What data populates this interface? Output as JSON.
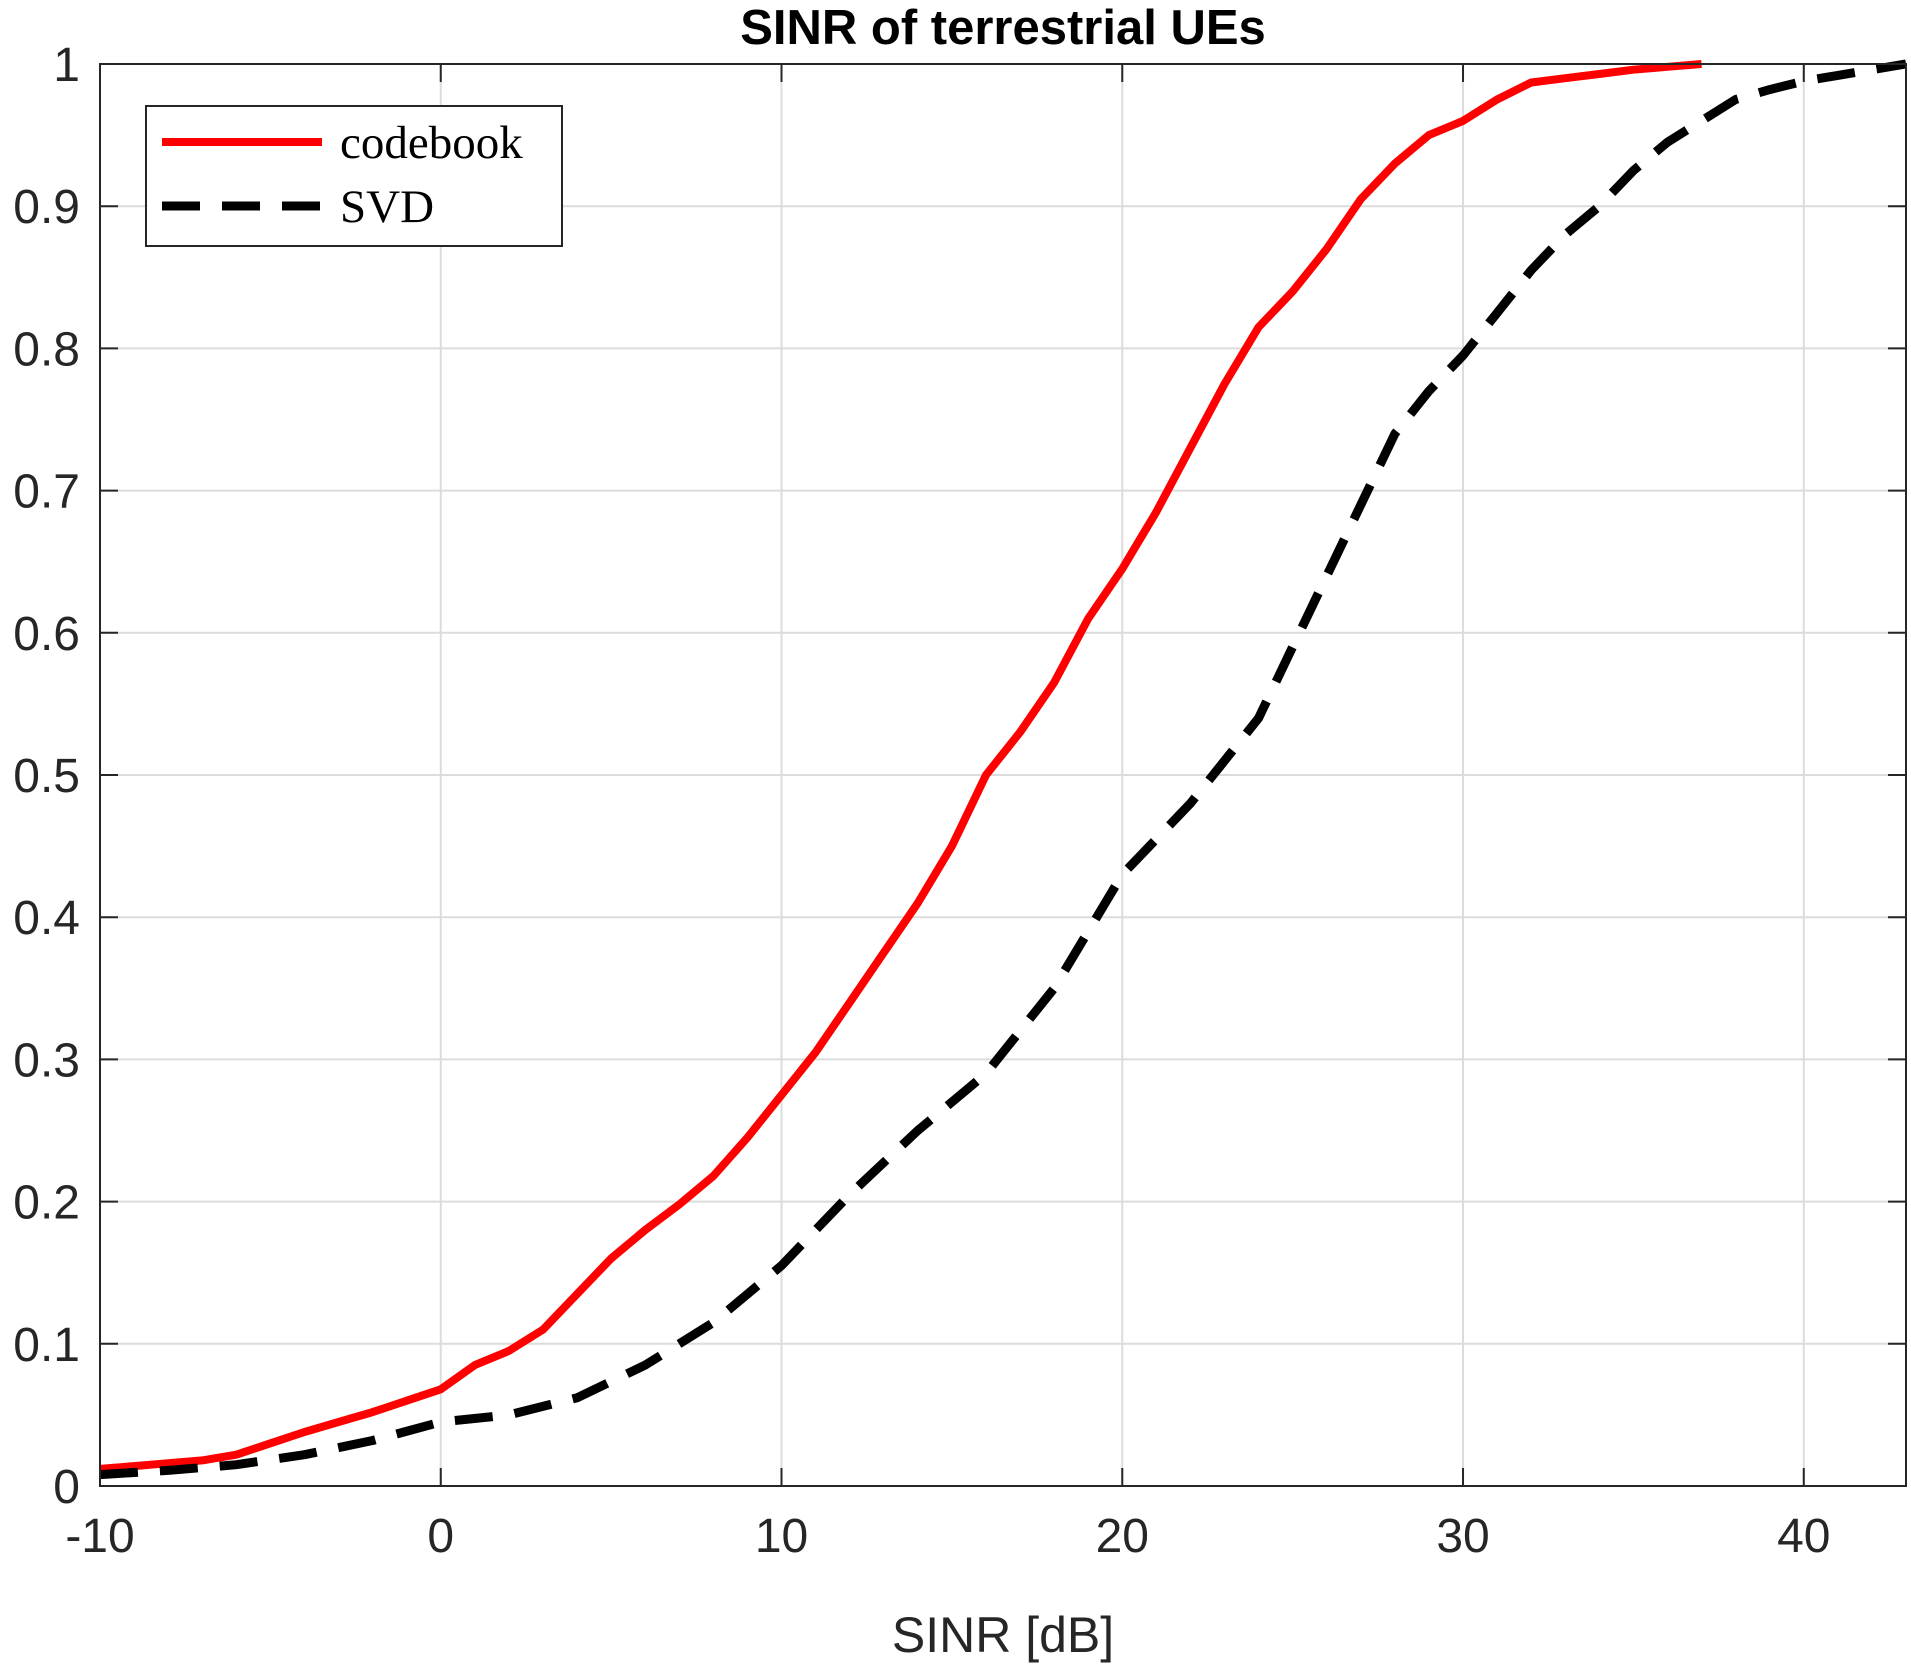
{
  "chart_data": {
    "type": "line",
    "title": "SINR of terrestrial UEs",
    "xlabel": "SINR [dB]",
    "ylabel": "",
    "xlim": [
      -10,
      43
    ],
    "ylim": [
      0,
      1
    ],
    "xticks": [
      -10,
      0,
      10,
      20,
      30,
      40
    ],
    "xtick_labels": [
      "-10",
      "0",
      "10",
      "20",
      "30",
      "40"
    ],
    "yticks": [
      0,
      0.1,
      0.2,
      0.3,
      0.4,
      0.5,
      0.6,
      0.7,
      0.8,
      0.9,
      1
    ],
    "ytick_labels": [
      "0",
      "0.1",
      "0.2",
      "0.3",
      "0.4",
      "0.5",
      "0.6",
      "0.7",
      "0.8",
      "0.9",
      "1"
    ],
    "grid": true,
    "legend_position": "top-left",
    "series": [
      {
        "name": "codebook",
        "color": "#ff0000",
        "style": "solid",
        "x": [
          -10,
          -9,
          -8,
          -7,
          -6,
          -5,
          -4,
          -3,
          -2,
          -1,
          0,
          1,
          2,
          3,
          4,
          5,
          6,
          7,
          8,
          9,
          10,
          11,
          12,
          13,
          14,
          15,
          16,
          17,
          18,
          19,
          20,
          21,
          22,
          23,
          24,
          25,
          26,
          27,
          28,
          29,
          30,
          31,
          32,
          33,
          34,
          35,
          36,
          37
        ],
        "y": [
          0.012,
          0.014,
          0.016,
          0.018,
          0.022,
          0.03,
          0.038,
          0.045,
          0.052,
          0.06,
          0.068,
          0.085,
          0.095,
          0.11,
          0.135,
          0.16,
          0.18,
          0.198,
          0.218,
          0.245,
          0.275,
          0.305,
          0.34,
          0.375,
          0.41,
          0.45,
          0.5,
          0.53,
          0.565,
          0.61,
          0.645,
          0.685,
          0.73,
          0.775,
          0.815,
          0.84,
          0.87,
          0.905,
          0.93,
          0.95,
          0.96,
          0.975,
          0.987,
          0.99,
          0.993,
          0.996,
          0.998,
          1.0
        ]
      },
      {
        "name": "SVD",
        "color": "#000000",
        "style": "dashed",
        "x": [
          -10,
          -8,
          -6,
          -4,
          -2,
          0,
          2,
          4,
          6,
          8,
          10,
          12,
          14,
          16,
          18,
          20,
          22,
          24,
          25,
          26,
          27,
          28,
          29,
          30,
          31,
          32,
          33,
          34,
          35,
          36,
          37,
          38,
          39,
          40,
          41,
          42,
          43
        ],
        "y": [
          0.008,
          0.011,
          0.015,
          0.022,
          0.032,
          0.045,
          0.05,
          0.062,
          0.085,
          0.115,
          0.155,
          0.205,
          0.25,
          0.29,
          0.35,
          0.43,
          0.48,
          0.54,
          0.59,
          0.64,
          0.69,
          0.74,
          0.77,
          0.795,
          0.825,
          0.855,
          0.88,
          0.9,
          0.925,
          0.945,
          0.96,
          0.975,
          0.982,
          0.988,
          0.992,
          0.996,
          1.0
        ]
      }
    ]
  }
}
